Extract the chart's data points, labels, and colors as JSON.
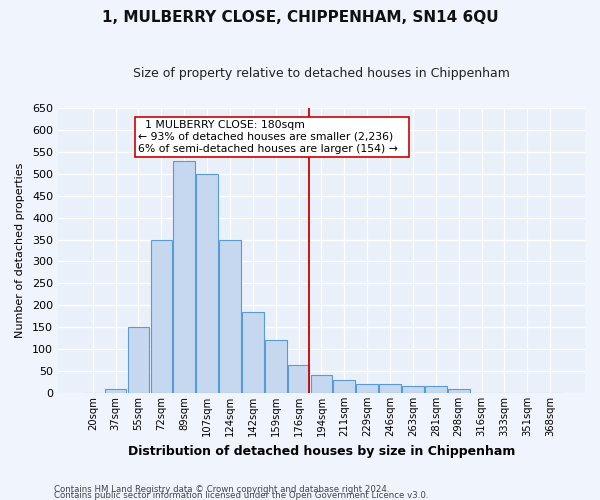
{
  "title": "1, MULBERRY CLOSE, CHIPPENHAM, SN14 6QU",
  "subtitle": "Size of property relative to detached houses in Chippenham",
  "xlabel": "Distribution of detached houses by size in Chippenham",
  "ylabel": "Number of detached properties",
  "categories": [
    "20sqm",
    "37sqm",
    "55sqm",
    "72sqm",
    "89sqm",
    "107sqm",
    "124sqm",
    "142sqm",
    "159sqm",
    "176sqm",
    "194sqm",
    "211sqm",
    "229sqm",
    "246sqm",
    "263sqm",
    "281sqm",
    "298sqm",
    "316sqm",
    "333sqm",
    "351sqm",
    "368sqm"
  ],
  "values": [
    0,
    10,
    150,
    350,
    530,
    500,
    350,
    185,
    120,
    65,
    40,
    30,
    20,
    20,
    15,
    15,
    10,
    0,
    0,
    0,
    0
  ],
  "bar_color": "#c5d8f0",
  "bar_edge_color": "#5b9bd5",
  "annotation_text_line1": "1 MULBERRY CLOSE: 180sqm",
  "annotation_text_line2": "← 93% of detached houses are smaller (2,236)",
  "annotation_text_line3": "6% of semi-detached houses are larger (154) →",
  "vline_color": "#cc0000",
  "ylim": [
    0,
    650
  ],
  "yticks": [
    0,
    50,
    100,
    150,
    200,
    250,
    300,
    350,
    400,
    450,
    500,
    550,
    600,
    650
  ],
  "bg_color": "#eaf0fa",
  "grid_color": "#ffffff",
  "title_fontsize": 11,
  "subtitle_fontsize": 9,
  "footer_line1": "Contains HM Land Registry data © Crown copyright and database right 2024.",
  "footer_line2": "Contains public sector information licensed under the Open Government Licence v3.0."
}
